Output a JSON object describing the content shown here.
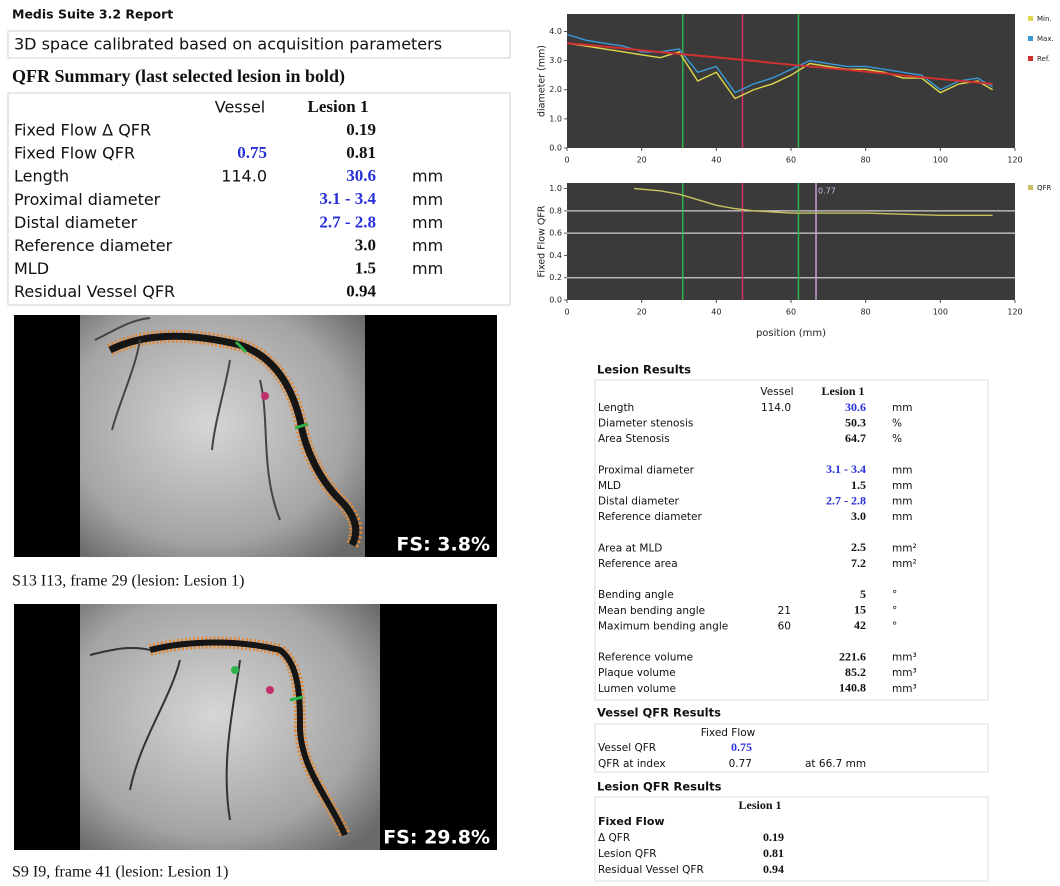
{
  "header": {
    "title": "Medis Suite 3.2 Report",
    "calibration": "3D space calibrated based on acquisition parameters"
  },
  "summary": {
    "title": "QFR Summary (last selected lesion in bold)",
    "columns": [
      "Vessel",
      "Lesion 1"
    ],
    "rows": [
      {
        "label": "Fixed Flow Δ QFR",
        "lesion": "0.19"
      },
      {
        "label": "Fixed Flow QFR",
        "vessel": "0.75",
        "lesion": "0.81"
      },
      {
        "label": "Length",
        "vessel": "114.0",
        "lesion": "30.6",
        "unit": "mm"
      },
      {
        "label": "Proximal diameter",
        "lesion": "3.1 - 3.4",
        "unit": "mm"
      },
      {
        "label": "Distal diameter",
        "lesion": "2.7 - 2.8",
        "unit": "mm"
      },
      {
        "label": "Reference diameter",
        "lesion": "3.0",
        "unit": "mm"
      },
      {
        "label": "MLD",
        "lesion": "1.5",
        "unit": "mm"
      },
      {
        "label": "Residual Vessel QFR",
        "lesion": "0.94"
      }
    ]
  },
  "images": [
    {
      "fs": "FS: 3.8%",
      "caption": "S13 I13, frame 29 (lesion: Lesion 1)"
    },
    {
      "fs": "FS: 29.8%",
      "caption": "S9 I9, frame 41 (lesion: Lesion 1)"
    }
  ],
  "chart_data": [
    {
      "type": "line",
      "ylabel": "diameter (mm)",
      "x": [
        0,
        5,
        10,
        15,
        20,
        25,
        30,
        35,
        40,
        45,
        50,
        55,
        60,
        65,
        70,
        75,
        80,
        85,
        90,
        95,
        100,
        105,
        110,
        114
      ],
      "series": [
        {
          "name": "Min.",
          "color": "#e0d84a",
          "values": [
            3.6,
            3.5,
            3.4,
            3.3,
            3.2,
            3.1,
            3.3,
            2.3,
            2.6,
            1.7,
            2.0,
            2.2,
            2.5,
            2.9,
            2.8,
            2.7,
            2.7,
            2.6,
            2.4,
            2.4,
            1.9,
            2.2,
            2.3,
            2.0
          ]
        },
        {
          "name": "Max.",
          "color": "#3a9ad9",
          "values": [
            3.9,
            3.7,
            3.6,
            3.5,
            3.3,
            3.3,
            3.4,
            2.6,
            2.8,
            1.9,
            2.2,
            2.4,
            2.7,
            3.0,
            2.9,
            2.8,
            2.8,
            2.7,
            2.6,
            2.5,
            2.0,
            2.3,
            2.4,
            2.1
          ]
        },
        {
          "name": "Ref.",
          "color": "#d03030",
          "values": [
            3.6,
            3.54,
            3.48,
            3.42,
            3.35,
            3.29,
            3.23,
            3.17,
            3.11,
            3.05,
            2.99,
            2.92,
            2.86,
            2.8,
            2.74,
            2.68,
            2.62,
            2.56,
            2.49,
            2.43,
            2.37,
            2.31,
            2.25,
            2.2
          ]
        }
      ],
      "markers": [
        {
          "x": 31,
          "color": "#2db34a"
        },
        {
          "x": 47,
          "color": "#d0306a"
        },
        {
          "x": 62,
          "color": "#2db34a"
        }
      ],
      "xlim": [
        0,
        120
      ],
      "xticks": [
        0,
        20,
        40,
        60,
        80,
        100,
        120
      ],
      "ylim": [
        0,
        4.6
      ],
      "yticks": [
        {
          "value": 0,
          "label": "0.0"
        },
        {
          "value": 1,
          "label": "1.0"
        },
        {
          "value": 2,
          "label": "2.0"
        },
        {
          "value": 3,
          "label": "3.0"
        },
        {
          "value": 4,
          "label": "4.0"
        }
      ]
    },
    {
      "type": "line",
      "ylabel": "Fixed Flow QFR",
      "xlabel": "position (mm)",
      "x": [
        18,
        25,
        30,
        35,
        40,
        45,
        50,
        55,
        60,
        70,
        80,
        90,
        100,
        114
      ],
      "series": [
        {
          "name": "QFR",
          "color": "#c8c060",
          "values": [
            1.0,
            0.98,
            0.95,
            0.9,
            0.85,
            0.82,
            0.8,
            0.79,
            0.78,
            0.78,
            0.78,
            0.77,
            0.76,
            0.76
          ]
        }
      ],
      "markers": [
        {
          "x": 31,
          "color": "#2db34a"
        },
        {
          "x": 47,
          "color": "#d0306a"
        },
        {
          "x": 62,
          "color": "#2db34a"
        },
        {
          "x": 66.7,
          "color": "#c8a0d8",
          "label": "0.77"
        }
      ],
      "hlines": [
        0.2,
        0.6,
        0.8
      ],
      "xlim": [
        0,
        120
      ],
      "xticks": [
        0,
        20,
        40,
        60,
        80,
        100,
        120
      ],
      "ylim": [
        0,
        1.05
      ],
      "yticks": [
        {
          "value": 0,
          "label": "0.0"
        },
        0.2,
        0.4,
        0.6,
        0.8,
        {
          "value": 1,
          "label": "1.0"
        }
      ]
    }
  ],
  "lesion_results": {
    "title": "Lesion Results",
    "columns": [
      "Vessel",
      "Lesion 1"
    ],
    "groups": [
      [
        {
          "label": "Length",
          "vessel": "114.0",
          "lesion": "30.6",
          "unit": "mm"
        },
        {
          "label": "Diameter stenosis",
          "lesion": "50.3",
          "unit": "%"
        },
        {
          "label": "Area Stenosis",
          "lesion": "64.7",
          "unit": "%"
        }
      ],
      [
        {
          "label": "Proximal diameter",
          "lesion": "3.1 - 3.4",
          "unit": "mm"
        },
        {
          "label": "MLD",
          "lesion": "1.5",
          "unit": "mm"
        },
        {
          "label": "Distal diameter",
          "lesion": "2.7 - 2.8",
          "unit": "mm"
        },
        {
          "label": "Reference diameter",
          "lesion": "3.0",
          "unit": "mm"
        }
      ],
      [
        {
          "label": "Area at MLD",
          "lesion": "2.5",
          "unit": "mm²"
        },
        {
          "label": "Reference area",
          "lesion": "7.2",
          "unit": "mm²"
        }
      ],
      [
        {
          "label": "Bending angle",
          "lesion": "5",
          "unit": "°"
        },
        {
          "label": "Mean bending angle",
          "vessel": "21",
          "lesion": "15",
          "unit": "°"
        },
        {
          "label": "Maximum bending angle",
          "vessel": "60",
          "lesion": "42",
          "unit": "°"
        }
      ],
      [
        {
          "label": "Reference volume",
          "lesion": "221.6",
          "unit": "mm³"
        },
        {
          "label": "Plaque volume",
          "lesion": "85.2",
          "unit": "mm³"
        },
        {
          "label": "Lumen volume",
          "lesion": "140.8",
          "unit": "mm³"
        }
      ]
    ]
  },
  "vessel_qfr": {
    "title": "Vessel QFR Results",
    "column": "Fixed Flow",
    "rows": [
      {
        "label": "Vessel QFR",
        "value": "0.75"
      },
      {
        "label": "QFR at index",
        "value": "0.77",
        "note": "at 66.7 mm"
      }
    ]
  },
  "lesion_qfr": {
    "title": "Lesion QFR Results",
    "column": "Lesion 1",
    "group": "Fixed Flow",
    "rows": [
      {
        "label": "Δ QFR",
        "value": "0.19"
      },
      {
        "label": "Lesion QFR",
        "value": "0.81"
      },
      {
        "label": "Residual Vessel QFR",
        "value": "0.94"
      }
    ]
  }
}
